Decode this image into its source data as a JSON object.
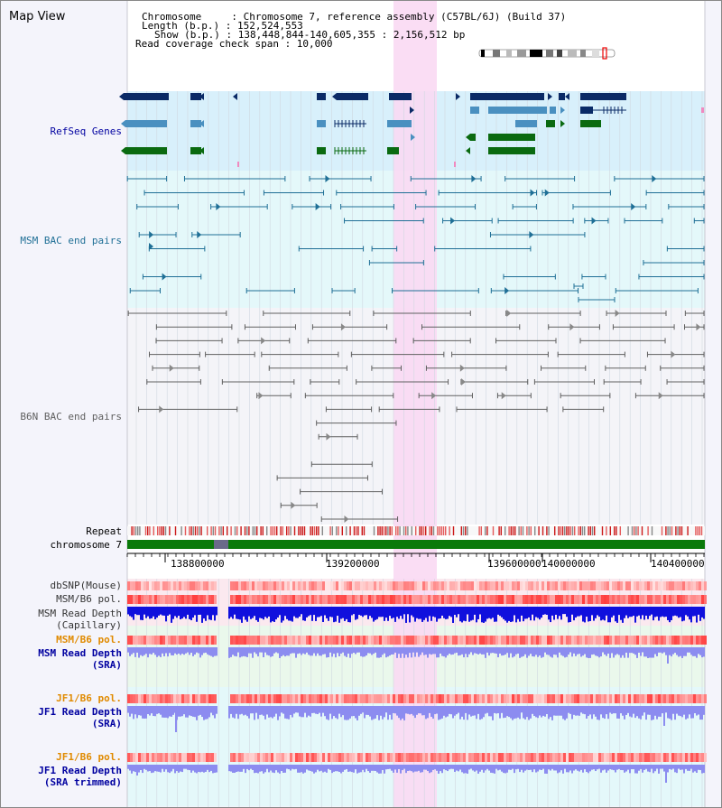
{
  "title": "Map View",
  "header": {
    "chromosome": "Chromosome     : Chromosome 7, reference assembly (C57BL/6J) (Build 37)",
    "length": "Length (b.p.) : 152,524,553",
    "show": "Show (b.p.) : 138,448,844-140,605,355 : 2,156,512 bp",
    "coverage": "Read coverage check span : 10,000"
  },
  "tracks": {
    "refseq": "RefSeq Genes",
    "msm_bac": "MSM BAC end pairs",
    "b6n_bac": "B6N BAC end pairs",
    "repeat": "Repeat",
    "chromosome": "chromosome 7",
    "dbsnp": "dbSNP(Mouse)",
    "msm_pol_1": "MSM/B6 pol.",
    "msm_depth_cap_1": "MSM Read Depth",
    "msm_depth_cap_2": "(Capillary)",
    "msm_pol_2": "MSM/B6 pol.",
    "msm_depth_sra_1": "MSM Read Depth",
    "msm_depth_sra_2": "(SRA)",
    "jf1_pol_1": "JF1/B6 pol.",
    "jf1_depth_sra_1": "JF1 Read Depth",
    "jf1_depth_sra_2": "(SRA)",
    "jf1_pol_2": "JF1/B6 pol.",
    "jf1_depth_trim_1": "JF1 Read Depth",
    "jf1_depth_trim_2": "(SRA trimmed)"
  },
  "axis": {
    "ticks": [
      "138800000",
      "139200000",
      "139600000",
      "140000000",
      "140400000"
    ]
  },
  "colors": {
    "gene_dark": "#0a2a66",
    "gene_mid": "#4a90c0",
    "gene_green": "#0a6a10",
    "msm_bac": "#1f6f96",
    "b6n_bac": "#606060",
    "highlight": "#f9d9f3",
    "chromosome_bar": "#0a7a0a",
    "depth_blue": "#1010dd",
    "depth_light": "#8c8cf0",
    "msm_label": "#0000a0",
    "pol_orange": "#e08a00",
    "refseq_label": "#0000a0",
    "msm_bac_label": "#1f6f96",
    "b6n_bac_label": "#606060"
  }
}
